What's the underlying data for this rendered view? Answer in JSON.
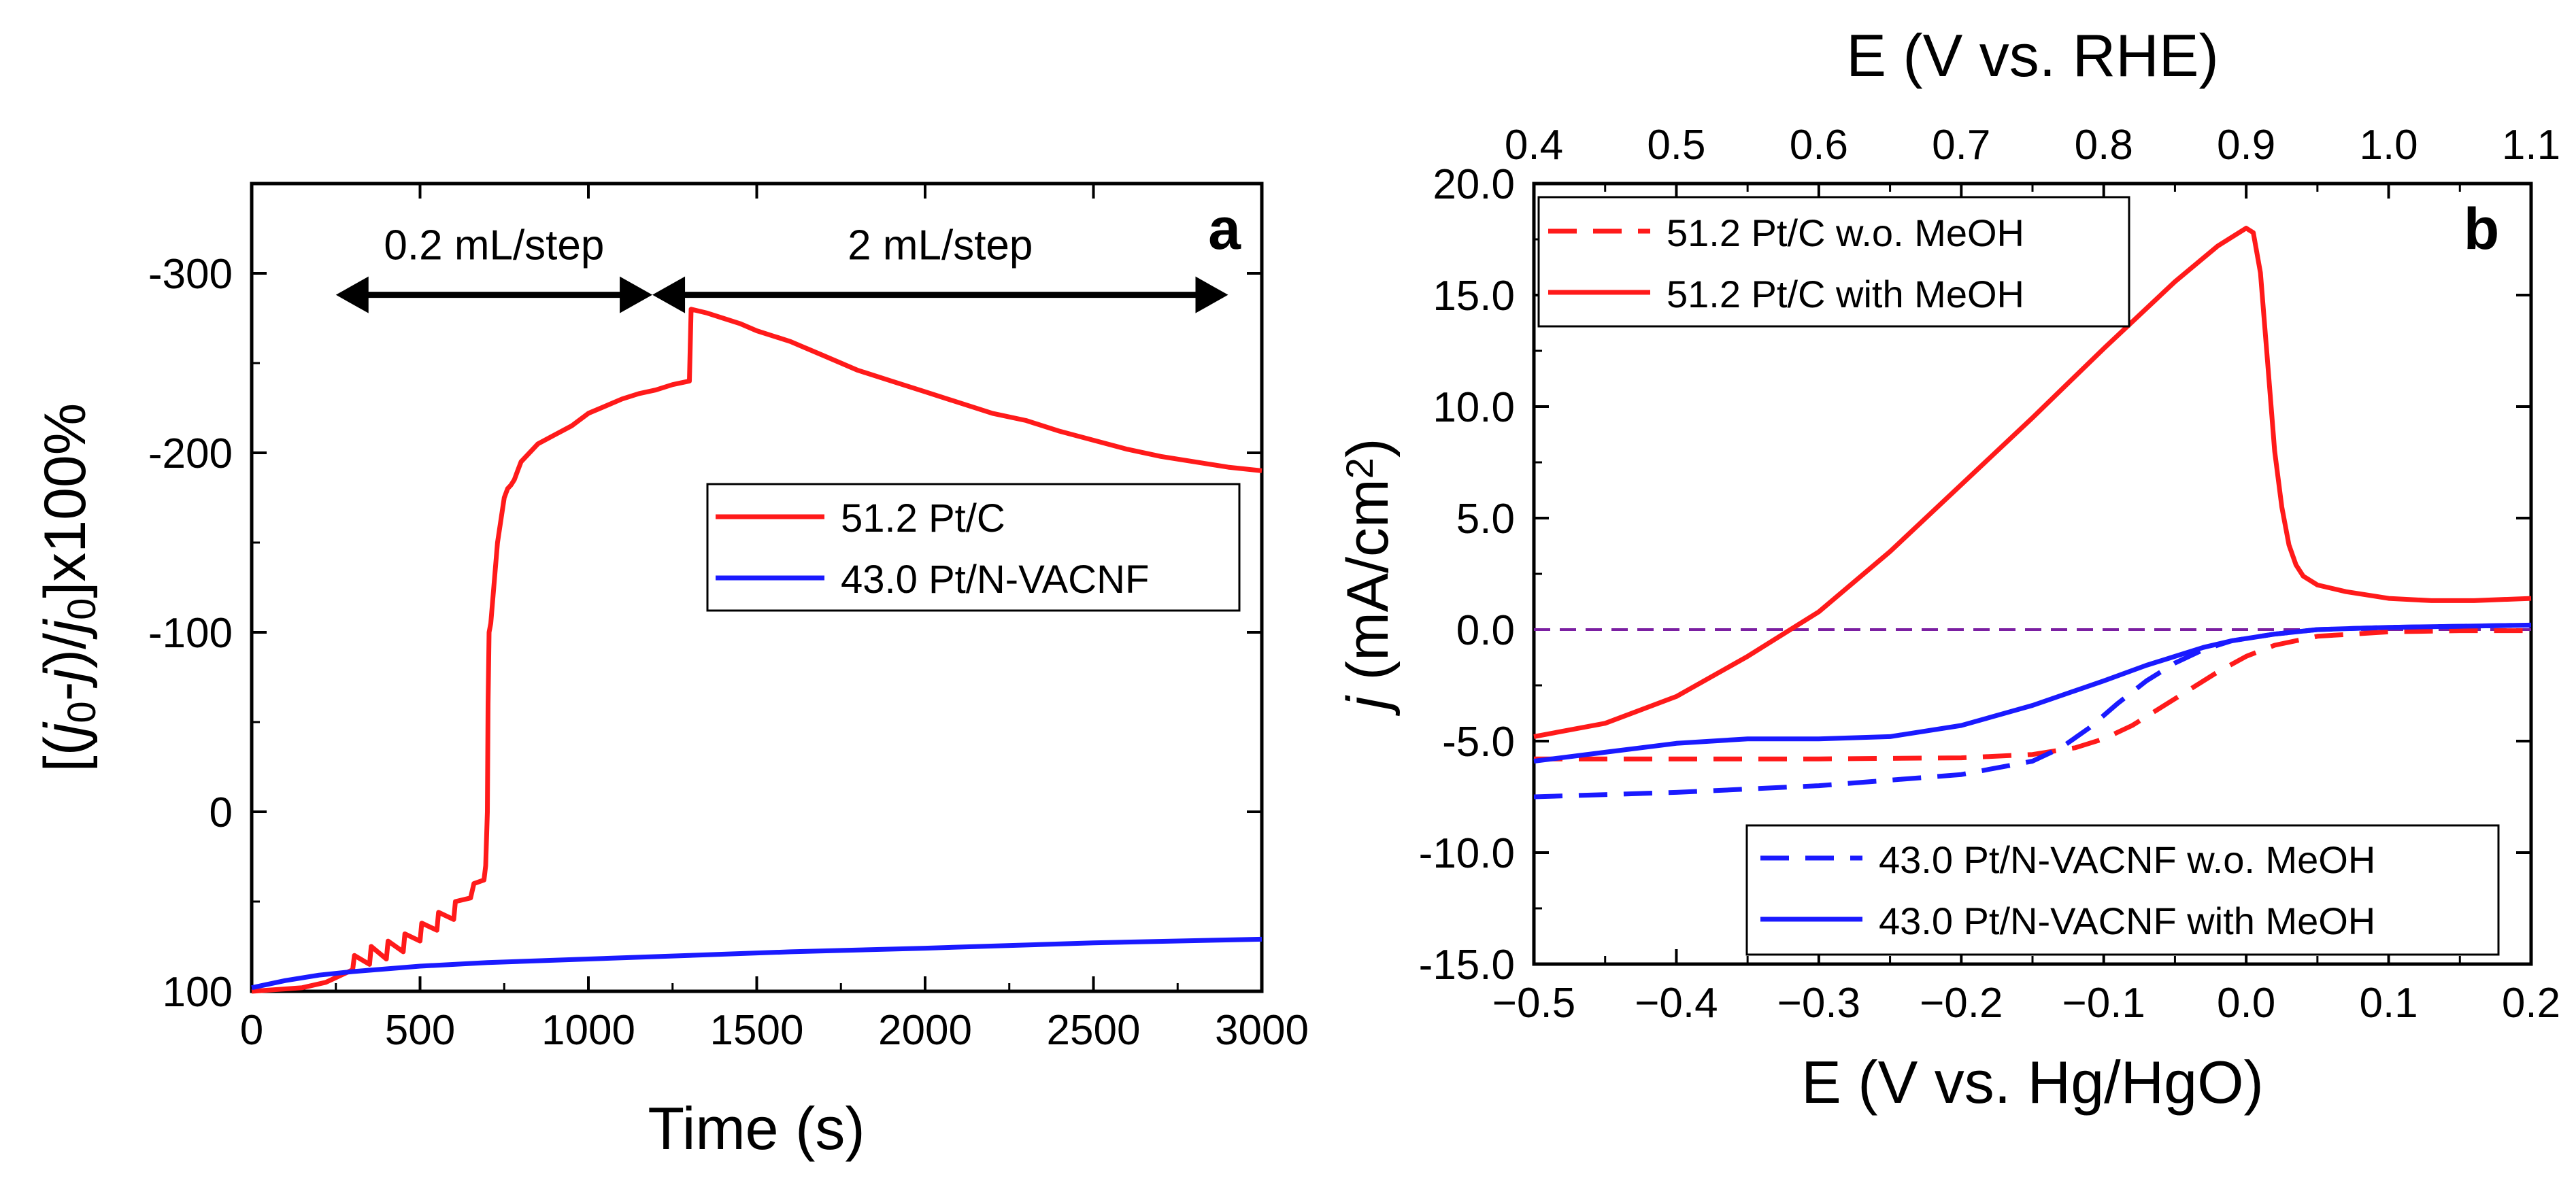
{
  "colors": {
    "pt_c": "#ff1a1a",
    "pt_nvacnf": "#1a1aff",
    "zero_line": "#7b1fa2",
    "axis": "#000000"
  },
  "chart_data": [
    {
      "panel": "a",
      "type": "line",
      "xlabel": "Time (s)",
      "ylabel_parts": [
        "[(",
        "j",
        "0",
        "-",
        "j",
        ")/",
        "j",
        "0",
        "]x100%"
      ],
      "xlim": [
        0,
        3000
      ],
      "ylim": [
        100,
        -350
      ],
      "xticks": [
        0,
        500,
        1000,
        1500,
        2000,
        2500,
        3000
      ],
      "yticks": [
        100,
        0,
        -100,
        -200,
        -300
      ],
      "xtick_labels": [
        "0",
        "500",
        "1000",
        "1500",
        "2000",
        "2500",
        "3000"
      ],
      "ytick_labels": [
        "100",
        "0",
        "-100",
        "-200",
        "-300"
      ],
      "annotations": [
        {
          "text": "0.2 mL/step",
          "x_from": 250,
          "x_to": 1190,
          "y": -288
        },
        {
          "text": "2 mL/step",
          "x_from": 1190,
          "x_to": 2900,
          "y": -288
        }
      ],
      "series": [
        {
          "name": "51.2 Pt/C",
          "color": "#ff1a1a",
          "style": "solid",
          "x": [
            0,
            150,
            220,
            300,
            305,
            350,
            355,
            400,
            405,
            450,
            455,
            500,
            505,
            550,
            555,
            600,
            605,
            650,
            660,
            690,
            695,
            700,
            702,
            705,
            710,
            730,
            750,
            760,
            770,
            780,
            790,
            800,
            850,
            900,
            950,
            1000,
            1050,
            1100,
            1150,
            1200,
            1250,
            1300,
            1305,
            1350,
            1400,
            1450,
            1500,
            1550,
            1600,
            1650,
            1700,
            1750,
            1800,
            1900,
            2000,
            2100,
            2200,
            2300,
            2400,
            2500,
            2600,
            2700,
            2800,
            2900,
            3000
          ],
          "y": [
            100,
            98,
            95,
            88,
            80,
            85,
            75,
            82,
            72,
            78,
            68,
            72,
            62,
            66,
            56,
            60,
            50,
            48,
            40,
            38,
            30,
            0,
            -60,
            -100,
            -105,
            -150,
            -175,
            -180,
            -182,
            -185,
            -190,
            -195,
            -205,
            -210,
            -215,
            -222,
            -226,
            -230,
            -233,
            -235,
            -238,
            -240,
            -280,
            -278,
            -275,
            -272,
            -268,
            -265,
            -262,
            -258,
            -254,
            -250,
            -246,
            -240,
            -234,
            -228,
            -222,
            -218,
            -212,
            -207,
            -202,
            -198,
            -195,
            -192,
            -190
          ]
        },
        {
          "name": "43.0 Pt/N-VACNF",
          "color": "#1a1aff",
          "style": "solid",
          "x": [
            0,
            100,
            200,
            300,
            500,
            700,
            1000,
            1300,
            1600,
            2000,
            2500,
            3000
          ],
          "y": [
            98,
            94,
            91,
            89,
            86,
            84,
            82,
            80,
            78,
            76,
            73,
            71
          ]
        }
      ],
      "legend": {
        "position": "center-right",
        "entries": [
          "51.2 Pt/C",
          "43.0 Pt/N-VACNF"
        ]
      }
    },
    {
      "panel": "b",
      "type": "line",
      "xlabel": "E (V vs. Hg/HgO)",
      "x2label": "E (V vs. RHE)",
      "ylabel_parts": [
        "j",
        " (mA/cm",
        "2",
        ")"
      ],
      "xlim": [
        -0.5,
        0.2
      ],
      "x2lim": [
        0.4,
        1.1
      ],
      "ylim": [
        -15,
        20
      ],
      "xticks": [
        -0.5,
        -0.4,
        -0.3,
        -0.2,
        -0.1,
        0.0,
        0.1,
        0.2
      ],
      "xtick_labels": [
        "−0.5",
        "−0.4",
        "−0.3",
        "−0.2",
        "−0.1",
        "0.0",
        "0.1",
        "0.2"
      ],
      "x2ticks": [
        0.4,
        0.5,
        0.6,
        0.7,
        0.8,
        0.9,
        1.0,
        1.1
      ],
      "x2tick_labels": [
        "0.4",
        "0.5",
        "0.6",
        "0.7",
        "0.8",
        "0.9",
        "1.0",
        "1.1"
      ],
      "yticks": [
        20,
        15,
        10,
        5,
        0,
        -5,
        -10,
        -15
      ],
      "ytick_labels": [
        "20.0",
        "15.0",
        "10.0",
        "5.0",
        "0.0",
        "-5.0",
        "-10.0",
        "-15.0"
      ],
      "reference_line": {
        "y": 0,
        "style": "dashed"
      },
      "series": [
        {
          "name": "51.2 Pt/C w.o. MeOH",
          "color": "#ff1a1a",
          "style": "dashed",
          "x": [
            -0.5,
            -0.4,
            -0.3,
            -0.2,
            -0.15,
            -0.12,
            -0.1,
            -0.08,
            -0.06,
            -0.04,
            -0.02,
            0.0,
            0.02,
            0.05,
            0.1,
            0.15,
            0.2
          ],
          "y": [
            -5.8,
            -5.8,
            -5.8,
            -5.75,
            -5.6,
            -5.3,
            -4.9,
            -4.3,
            -3.5,
            -2.7,
            -1.9,
            -1.2,
            -0.7,
            -0.3,
            -0.1,
            -0.05,
            -0.05
          ]
        },
        {
          "name": "51.2 Pt/C with MeOH",
          "color": "#ff1a1a",
          "style": "solid",
          "x": [
            -0.5,
            -0.45,
            -0.4,
            -0.35,
            -0.3,
            -0.25,
            -0.2,
            -0.15,
            -0.1,
            -0.05,
            -0.02,
            0.0,
            0.005,
            0.01,
            0.015,
            0.02,
            0.025,
            0.03,
            0.035,
            0.04,
            0.05,
            0.07,
            0.1,
            0.13,
            0.16,
            0.2
          ],
          "y": [
            -4.8,
            -4.2,
            -3.0,
            -1.2,
            0.8,
            3.5,
            6.5,
            9.5,
            12.6,
            15.6,
            17.2,
            18.0,
            17.8,
            16.0,
            12.0,
            8.0,
            5.5,
            3.8,
            2.9,
            2.4,
            2.0,
            1.7,
            1.4,
            1.3,
            1.3,
            1.4
          ]
        },
        {
          "name": "43.0 Pt/N-VACNF w.o. MeOH",
          "color": "#1a1aff",
          "style": "dashed",
          "x": [
            -0.5,
            -0.4,
            -0.3,
            -0.2,
            -0.15,
            -0.13,
            -0.11,
            -0.09,
            -0.07,
            -0.05,
            -0.03,
            -0.01,
            0.02,
            0.05,
            0.1,
            0.15,
            0.2
          ],
          "y": [
            -7.5,
            -7.3,
            -7.0,
            -6.5,
            -5.9,
            -5.3,
            -4.4,
            -3.3,
            -2.3,
            -1.5,
            -0.9,
            -0.5,
            -0.2,
            0.0,
            0.1,
            0.15,
            0.2
          ]
        },
        {
          "name": "43.0 Pt/N-VACNF with MeOH",
          "color": "#1a1aff",
          "style": "solid",
          "x": [
            -0.5,
            -0.45,
            -0.4,
            -0.35,
            -0.3,
            -0.25,
            -0.2,
            -0.15,
            -0.1,
            -0.07,
            -0.05,
            -0.03,
            -0.01,
            0.02,
            0.05,
            0.1,
            0.15,
            0.2
          ],
          "y": [
            -5.9,
            -5.5,
            -5.1,
            -4.9,
            -4.9,
            -4.8,
            -4.3,
            -3.4,
            -2.3,
            -1.6,
            -1.2,
            -0.8,
            -0.5,
            -0.2,
            0.0,
            0.1,
            0.15,
            0.2
          ]
        }
      ],
      "legend_top": {
        "position": "top-left",
        "entries": [
          "51.2 Pt/C w.o. MeOH",
          "51.2 Pt/C with MeOH"
        ]
      },
      "legend_bottom": {
        "position": "bottom-right",
        "entries": [
          "43.0 Pt/N-VACNF w.o. MeOH",
          "43.0 Pt/N-VACNF with MeOH"
        ]
      }
    }
  ]
}
